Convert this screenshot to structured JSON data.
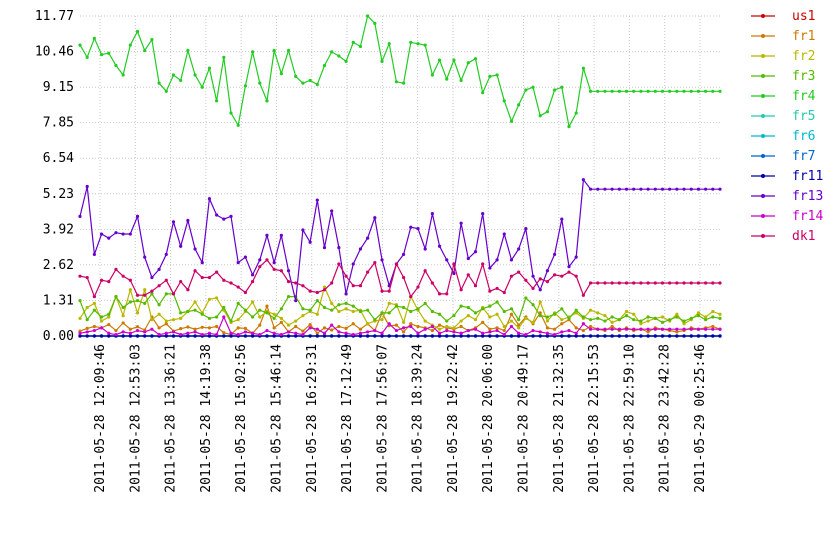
{
  "chart_data": {
    "type": "line",
    "title": "",
    "xlabel": "",
    "ylabel": "",
    "ylim": [
      0,
      11.77
    ],
    "yticks": [
      "0.00",
      "1.31",
      "2.62",
      "3.92",
      "5.23",
      "6.54",
      "7.85",
      "9.15",
      "10.46",
      "11.77"
    ],
    "xtick_labels": [
      "2011-05-28 12:09:46",
      "2011-05-28 12:53:03",
      "2011-05-28 13:36:21",
      "2011-05-28 14:19:38",
      "2011-05-28 15:02:56",
      "2011-05-28 15:46:14",
      "2011-05-28 16:29:31",
      "2011-05-28 17:12:49",
      "2011-05-28 17:56:07",
      "2011-05-28 18:39:24",
      "2011-05-28 19:22:42",
      "2011-05-28 20:06:00",
      "2011-05-28 20:49:17",
      "2011-05-28 21:32:35",
      "2011-05-28 22:15:53",
      "2011-05-28 22:59:10",
      "2011-05-28 23:42:28",
      "2011-05-29 00:25:46"
    ],
    "grid": true,
    "legend_position": "right",
    "series": [
      {
        "name": "us1",
        "color": "#cc0000",
        "values": [
          0,
          0,
          0,
          0,
          0,
          0,
          0,
          0,
          0,
          0,
          0,
          0,
          0,
          0,
          0,
          0,
          0,
          0,
          0,
          0,
          0,
          0,
          0,
          0,
          0,
          0,
          0,
          0,
          0,
          0,
          0,
          0,
          0,
          0,
          0,
          0,
          0,
          0,
          0,
          0,
          0,
          0,
          0,
          0,
          0,
          0,
          0,
          0,
          0,
          0,
          0,
          0,
          0,
          0,
          0,
          0,
          0,
          0,
          0,
          0,
          0,
          0,
          0,
          0,
          0,
          0,
          0,
          0,
          0,
          0,
          0,
          0,
          0,
          0,
          0,
          0,
          0,
          0,
          0,
          0,
          0,
          0,
          0,
          0,
          0,
          0,
          0,
          0,
          0,
          0
        ]
      },
      {
        "name": "fr1",
        "color": "#cc7a00",
        "values": [
          0.18,
          0.28,
          0.35,
          0.3,
          0.42,
          0.2,
          0.48,
          0.25,
          0.34,
          0.22,
          0.7,
          0.3,
          0.45,
          0.18,
          0.27,
          0.33,
          0.25,
          0.32,
          0.3,
          0.35,
          0.12,
          0.05,
          0.3,
          0.28,
          0.1,
          0.4,
          1.1,
          0.3,
          0.5,
          0.15,
          0.35,
          0.18,
          0.42,
          0.1,
          0.3,
          0.22,
          0.35,
          0.28,
          0.45,
          0.25,
          0.45,
          0.2,
          0.85,
          0.38,
          0.4,
          0.15,
          0.45,
          0.35,
          0.3,
          0.2,
          0.4,
          0.3,
          0.25,
          0.35,
          0.2,
          0.3,
          0.5,
          0.25,
          0.3,
          0.2,
          0.8,
          0.4,
          0.7,
          0.45,
          0.85,
          0.3,
          0.25,
          0.45,
          0.6,
          0.3,
          0.2,
          0.35,
          0.25,
          0.2,
          0.35,
          0.2,
          0.3,
          0.2,
          0.25,
          0.15,
          0.3,
          0.25,
          0.2,
          0.15,
          0.2,
          0.3,
          0.25,
          0.3,
          0.35,
          0.25
        ]
      },
      {
        "name": "fr2",
        "color": "#b8b800",
        "values": [
          0.65,
          1.05,
          1.2,
          0.55,
          0.7,
          1.45,
          0.75,
          1.7,
          0.85,
          1.7,
          0.6,
          0.8,
          0.55,
          0.6,
          0.65,
          0.9,
          1.25,
          0.85,
          1.35,
          1.4,
          0.95,
          0.5,
          0.6,
          0.9,
          1.25,
          0.7,
          0.9,
          0.8,
          0.65,
          0.4,
          0.55,
          0.75,
          0.9,
          0.8,
          1.8,
          1.2,
          0.9,
          1.0,
          0.9,
          0.95,
          0.45,
          0.55,
          0.6,
          1.2,
          1.15,
          0.5,
          1.45,
          0.95,
          0.55,
          0.4,
          0.25,
          0.35,
          0.3,
          0.55,
          0.75,
          0.6,
          1.05,
          0.7,
          0.8,
          0.35,
          0.55,
          0.3,
          0.65,
          0.5,
          1.25,
          0.55,
          0.85,
          0.6,
          0.7,
          0.85,
          0.65,
          0.95,
          0.85,
          0.75,
          0.5,
          0.6,
          0.9,
          0.8,
          0.45,
          0.55,
          0.65,
          0.7,
          0.55,
          0.8,
          0.45,
          0.6,
          0.85,
          0.7,
          0.9,
          0.8
        ]
      },
      {
        "name": "fr3",
        "color": "#55bb00",
        "values": [
          1.3,
          0.6,
          0.95,
          0.7,
          0.8,
          1.45,
          1.05,
          1.25,
          1.3,
          1.2,
          1.55,
          1.15,
          1.55,
          1.55,
          0.85,
          0.9,
          0.95,
          0.8,
          0.65,
          0.7,
          1.05,
          0.55,
          1.2,
          0.95,
          0.7,
          0.95,
          0.85,
          0.65,
          1.0,
          1.45,
          1.45,
          1.0,
          0.95,
          1.3,
          1.05,
          0.95,
          1.15,
          1.2,
          1.1,
          0.9,
          0.95,
          0.6,
          0.85,
          0.85,
          1.1,
          1.05,
          0.9,
          1.0,
          1.2,
          0.9,
          0.8,
          0.55,
          0.75,
          1.1,
          1.05,
          0.85,
          1.0,
          1.1,
          1.25,
          0.9,
          1.0,
          0.6,
          1.4,
          1.15,
          0.75,
          0.7,
          0.8,
          1.0,
          0.65,
          0.95,
          0.7,
          0.6,
          0.65,
          0.55,
          0.7,
          0.6,
          0.75,
          0.6,
          0.55,
          0.7,
          0.65,
          0.5,
          0.6,
          0.7,
          0.55,
          0.65,
          0.75,
          0.6,
          0.7,
          0.65
        ]
      },
      {
        "name": "fr4",
        "color": "#22cc22",
        "values": [
          10.7,
          10.25,
          10.95,
          10.35,
          10.4,
          9.95,
          9.6,
          10.7,
          11.2,
          10.5,
          10.9,
          9.3,
          9.0,
          9.6,
          9.4,
          10.5,
          9.6,
          9.15,
          9.85,
          8.65,
          10.25,
          8.2,
          7.75,
          9.2,
          10.45,
          9.3,
          8.65,
          10.5,
          9.65,
          10.5,
          9.55,
          9.3,
          9.4,
          9.25,
          9.95,
          10.45,
          10.3,
          10.1,
          10.8,
          10.65,
          11.77,
          11.5,
          10.1,
          10.75,
          9.35,
          9.3,
          10.8,
          10.75,
          10.7,
          9.6,
          10.15,
          9.45,
          10.15,
          9.4,
          10.05,
          10.2,
          8.95,
          9.55,
          9.6,
          8.65,
          7.9,
          8.5,
          9.05,
          9.15,
          8.1,
          8.25,
          9.05,
          9.15,
          7.7,
          8.2,
          9.85,
          9.0,
          9.0,
          9.0,
          9.0,
          9.0,
          9.0,
          9.0,
          9.0,
          9.0,
          9.0,
          9.0,
          9.0,
          9.0,
          9.0,
          9.0,
          9.0,
          9.0,
          9.0,
          9.0
        ]
      },
      {
        "name": "fr5",
        "color": "#22ccaa",
        "values": [
          0,
          0,
          0,
          0,
          0,
          0,
          0,
          0,
          0,
          0,
          0,
          0,
          0,
          0,
          0,
          0,
          0,
          0,
          0,
          0,
          0,
          0,
          0,
          0,
          0,
          0,
          0,
          0,
          0,
          0,
          0,
          0,
          0,
          0,
          0,
          0,
          0,
          0,
          0,
          0,
          0,
          0,
          0,
          0,
          0,
          0,
          0,
          0,
          0,
          0,
          0,
          0,
          0,
          0,
          0,
          0,
          0,
          0,
          0,
          0,
          0,
          0,
          0,
          0,
          0,
          0,
          0,
          0,
          0,
          0,
          0,
          0,
          0,
          0,
          0,
          0,
          0,
          0,
          0,
          0,
          0,
          0,
          0,
          0,
          0,
          0,
          0,
          0,
          0,
          0
        ]
      },
      {
        "name": "fr6",
        "color": "#00bbcc",
        "values": [
          0,
          0,
          0,
          0,
          0,
          0,
          0,
          0,
          0,
          0,
          0,
          0,
          0,
          0,
          0,
          0,
          0,
          0,
          0,
          0,
          0,
          0,
          0,
          0,
          0,
          0,
          0,
          0,
          0,
          0,
          0,
          0,
          0,
          0,
          0,
          0,
          0,
          0,
          0,
          0,
          0,
          0,
          0,
          0,
          0,
          0,
          0,
          0,
          0,
          0,
          0,
          0,
          0,
          0,
          0,
          0,
          0,
          0,
          0,
          0,
          0,
          0,
          0,
          0,
          0,
          0,
          0,
          0,
          0,
          0,
          0,
          0,
          0,
          0,
          0,
          0,
          0,
          0,
          0,
          0,
          0,
          0,
          0,
          0,
          0,
          0,
          0,
          0,
          0,
          0
        ]
      },
      {
        "name": "fr7",
        "color": "#0066cc",
        "values": [
          0,
          0,
          0,
          0,
          0,
          0,
          0,
          0,
          0,
          0,
          0,
          0,
          0,
          0,
          0,
          0,
          0,
          0,
          0,
          0,
          0,
          0,
          0,
          0,
          0,
          0,
          0,
          0,
          0,
          0,
          0,
          0,
          0,
          0,
          0,
          0,
          0,
          0,
          0,
          0,
          0,
          0,
          0,
          0,
          0,
          0,
          0,
          0,
          0,
          0,
          0,
          0,
          0,
          0,
          0,
          0,
          0,
          0,
          0,
          0,
          0,
          0,
          0,
          0,
          0,
          0,
          0,
          0,
          0,
          0,
          0,
          0,
          0,
          0,
          0,
          0,
          0,
          0,
          0,
          0,
          0,
          0,
          0,
          0,
          0,
          0,
          0,
          0,
          0,
          0
        ]
      },
      {
        "name": "fr11",
        "color": "#0000aa",
        "values": [
          0,
          0,
          0,
          0,
          0,
          0,
          0,
          0,
          0,
          0,
          0,
          0,
          0,
          0,
          0,
          0,
          0,
          0,
          0,
          0,
          0,
          0,
          0,
          0,
          0,
          0,
          0,
          0,
          0,
          0,
          0,
          0,
          0,
          0,
          0,
          0,
          0,
          0,
          0,
          0,
          0,
          0,
          0,
          0,
          0,
          0,
          0,
          0,
          0,
          0,
          0,
          0,
          0,
          0,
          0,
          0,
          0,
          0,
          0,
          0,
          0,
          0,
          0,
          0,
          0,
          0,
          0,
          0,
          0,
          0,
          0,
          0,
          0,
          0,
          0,
          0,
          0,
          0,
          0,
          0,
          0,
          0,
          0,
          0,
          0,
          0,
          0,
          0,
          0,
          0
        ]
      },
      {
        "name": "fr13",
        "color": "#6600cc",
        "values": [
          4.4,
          5.5,
          3.0,
          3.75,
          3.6,
          3.8,
          3.75,
          3.75,
          4.4,
          2.9,
          2.15,
          2.45,
          3.0,
          4.2,
          3.3,
          4.25,
          3.2,
          2.7,
          5.05,
          4.45,
          4.3,
          4.4,
          2.7,
          2.9,
          2.25,
          2.8,
          3.7,
          2.7,
          3.7,
          2.4,
          1.3,
          3.9,
          3.45,
          5.0,
          3.25,
          4.6,
          3.25,
          1.55,
          2.65,
          3.2,
          3.6,
          4.35,
          2.8,
          1.85,
          2.65,
          3.0,
          4.0,
          3.95,
          3.2,
          4.5,
          3.3,
          2.8,
          2.3,
          4.15,
          2.85,
          3.1,
          4.5,
          2.5,
          2.8,
          3.75,
          2.8,
          3.2,
          3.95,
          2.2,
          1.7,
          2.4,
          3.0,
          4.3,
          2.55,
          2.9,
          5.75,
          5.4,
          5.4,
          5.4,
          5.4,
          5.4,
          5.4,
          5.4,
          5.4,
          5.4,
          5.4,
          5.4,
          5.4,
          5.4,
          5.4,
          5.4,
          5.4,
          5.4,
          5.4,
          5.4
        ]
      },
      {
        "name": "fr14",
        "color": "#cc00cc",
        "values": [
          0.1,
          0.15,
          0.2,
          0.3,
          0.1,
          0.05,
          0.15,
          0.1,
          0.2,
          0.15,
          0.25,
          0.05,
          0.1,
          0.15,
          0.05,
          0.1,
          0.15,
          0.05,
          0.1,
          0.05,
          0.7,
          0.1,
          0.05,
          0.15,
          0.1,
          0.05,
          0.2,
          0.1,
          0.05,
          0.15,
          0.1,
          0.05,
          0.3,
          0.25,
          0.1,
          0.4,
          0.15,
          0.1,
          0.05,
          0.1,
          0.15,
          0.2,
          0.1,
          0.45,
          0.2,
          0.3,
          0.35,
          0.1,
          0.25,
          0.35,
          0.1,
          0.2,
          0.15,
          0.1,
          0.2,
          0.25,
          0.1,
          0.15,
          0.2,
          0.05,
          0.35,
          0.1,
          0.05,
          0.2,
          0.15,
          0.1,
          0.05,
          0.15,
          0.2,
          0.1,
          0.45,
          0.25,
          0.25,
          0.25,
          0.25,
          0.25,
          0.25,
          0.25,
          0.25,
          0.25,
          0.25,
          0.25,
          0.25,
          0.25,
          0.25,
          0.25,
          0.25,
          0.25,
          0.25,
          0.25
        ]
      },
      {
        "name": "dk1",
        "color": "#cc0066",
        "values": [
          2.2,
          2.15,
          1.45,
          2.05,
          2.0,
          2.45,
          2.2,
          2.05,
          1.5,
          1.5,
          1.65,
          1.85,
          2.05,
          1.55,
          2.0,
          1.7,
          2.4,
          2.15,
          2.15,
          2.35,
          2.05,
          1.95,
          1.8,
          1.6,
          2.0,
          2.55,
          2.8,
          2.45,
          2.4,
          2.0,
          1.95,
          1.85,
          1.65,
          1.6,
          1.7,
          1.95,
          2.65,
          2.2,
          1.85,
          1.85,
          2.35,
          2.7,
          1.65,
          1.65,
          2.65,
          2.15,
          1.45,
          1.8,
          2.4,
          1.95,
          1.55,
          1.55,
          2.65,
          1.7,
          2.25,
          1.85,
          2.65,
          1.65,
          1.75,
          1.6,
          2.2,
          2.35,
          2.05,
          1.75,
          2.1,
          2.0,
          2.25,
          2.2,
          2.35,
          2.2,
          1.5,
          1.95,
          1.95,
          1.95,
          1.95,
          1.95,
          1.95,
          1.95,
          1.95,
          1.95,
          1.95,
          1.95,
          1.95,
          1.95,
          1.95,
          1.95,
          1.95,
          1.95,
          1.95,
          1.95
        ]
      }
    ]
  }
}
